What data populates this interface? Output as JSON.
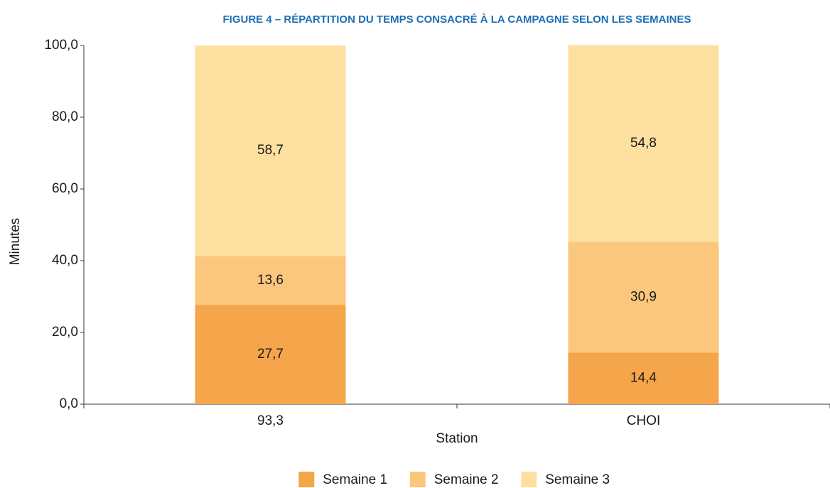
{
  "chart_data": {
    "type": "bar",
    "stacked": true,
    "title": "FIGURE 4 – RÉPARTITION DU TEMPS CONSACRÉ À LA CAMPAGNE SELON LES SEMAINES",
    "x_label": "Station",
    "y_label": "Minutes",
    "categories": [
      "93,3",
      "CHOI"
    ],
    "series": [
      {
        "name": "Semaine 1",
        "color": "#f5a54a",
        "values": [
          27.7,
          14.4
        ],
        "value_labels": [
          "27,7",
          "14,4"
        ]
      },
      {
        "name": "Semaine 2",
        "color": "#fbc77d",
        "values": [
          13.6,
          30.9
        ],
        "value_labels": [
          "13,6",
          "30,9"
        ]
      },
      {
        "name": "Semaine 3",
        "color": "#fde09f",
        "values": [
          58.7,
          54.8
        ],
        "value_labels": [
          "58,7",
          "54,8"
        ]
      }
    ],
    "ylim": [
      0,
      100
    ],
    "yticks": [
      {
        "value": 0,
        "label": "0,0"
      },
      {
        "value": 20,
        "label": "20,0"
      },
      {
        "value": 40,
        "label": "40,0"
      },
      {
        "value": 60,
        "label": "60,0"
      },
      {
        "value": 80,
        "label": "80,0"
      },
      {
        "value": 100,
        "label": "100,0"
      }
    ],
    "grid": false,
    "legend": "bottom"
  }
}
